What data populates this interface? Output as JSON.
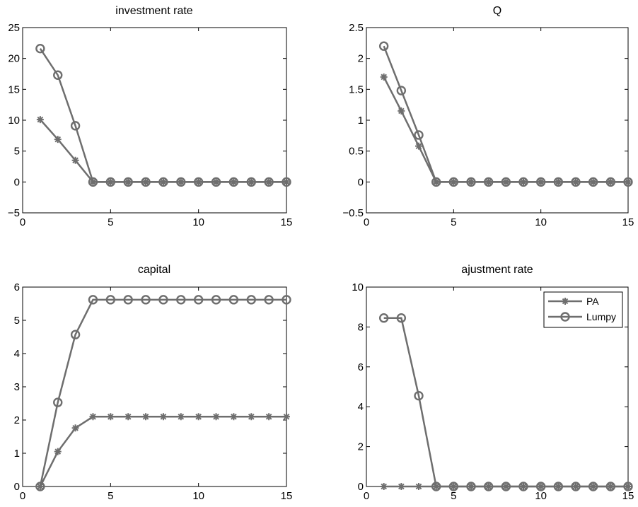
{
  "chart_data": [
    {
      "type": "line",
      "title": "investment rate",
      "xlabel": "",
      "ylabel": "",
      "xlim": [
        0,
        15
      ],
      "ylim": [
        -5,
        25
      ],
      "xticks": [
        0,
        5,
        10,
        15
      ],
      "xtick_labels": [
        "0",
        "5",
        "10",
        "15"
      ],
      "yticks": [
        -5,
        0,
        5,
        10,
        15,
        20,
        25
      ],
      "ytick_labels": [
        "−5",
        "0",
        "5",
        "10",
        "15",
        "20",
        "25"
      ],
      "x": [
        1,
        2,
        3,
        4,
        5,
        6,
        7,
        8,
        9,
        10,
        11,
        12,
        13,
        14,
        15
      ],
      "series": [
        {
          "name": "PA",
          "marker": "star",
          "values": [
            10.1,
            6.9,
            3.5,
            0,
            0,
            0,
            0,
            0,
            0,
            0,
            0,
            0,
            0,
            0,
            0
          ]
        },
        {
          "name": "Lumpy",
          "marker": "circle",
          "values": [
            21.6,
            17.3,
            9.1,
            0,
            0,
            0,
            0,
            0,
            0,
            0,
            0,
            0,
            0,
            0,
            0
          ]
        }
      ],
      "legend": false
    },
    {
      "type": "line",
      "title": "Q",
      "xlabel": "",
      "ylabel": "",
      "xlim": [
        0,
        15
      ],
      "ylim": [
        -0.5,
        2.5
      ],
      "xticks": [
        0,
        5,
        10,
        15
      ],
      "xtick_labels": [
        "0",
        "5",
        "10",
        "15"
      ],
      "yticks": [
        -0.5,
        0,
        0.5,
        1,
        1.5,
        2,
        2.5
      ],
      "ytick_labels": [
        "−0.5",
        "0",
        "0.5",
        "1",
        "1.5",
        "2",
        "2.5"
      ],
      "x": [
        1,
        2,
        3,
        4,
        5,
        6,
        7,
        8,
        9,
        10,
        11,
        12,
        13,
        14,
        15
      ],
      "series": [
        {
          "name": "PA",
          "marker": "star",
          "values": [
            1.7,
            1.15,
            0.58,
            0,
            0,
            0,
            0,
            0,
            0,
            0,
            0,
            0,
            0,
            0,
            0
          ]
        },
        {
          "name": "Lumpy",
          "marker": "circle",
          "values": [
            2.2,
            1.48,
            0.76,
            0,
            0,
            0,
            0,
            0,
            0,
            0,
            0,
            0,
            0,
            0,
            0
          ]
        }
      ],
      "legend": false
    },
    {
      "type": "line",
      "title": "capital",
      "xlabel": "",
      "ylabel": "",
      "xlim": [
        0,
        15
      ],
      "ylim": [
        0,
        6
      ],
      "xticks": [
        0,
        5,
        10,
        15
      ],
      "xtick_labels": [
        "0",
        "5",
        "10",
        "15"
      ],
      "yticks": [
        0,
        1,
        2,
        3,
        4,
        5,
        6
      ],
      "ytick_labels": [
        "0",
        "1",
        "2",
        "3",
        "4",
        "5",
        "6"
      ],
      "x": [
        1,
        2,
        3,
        4,
        5,
        6,
        7,
        8,
        9,
        10,
        11,
        12,
        13,
        14,
        15
      ],
      "series": [
        {
          "name": "PA",
          "marker": "star",
          "values": [
            0,
            1.05,
            1.76,
            2.1,
            2.1,
            2.1,
            2.1,
            2.1,
            2.1,
            2.1,
            2.1,
            2.1,
            2.1,
            2.1,
            2.1
          ]
        },
        {
          "name": "Lumpy",
          "marker": "circle",
          "values": [
            0,
            2.53,
            4.57,
            5.62,
            5.62,
            5.62,
            5.62,
            5.62,
            5.62,
            5.62,
            5.62,
            5.62,
            5.62,
            5.62,
            5.62
          ]
        }
      ],
      "legend": false
    },
    {
      "type": "line",
      "title": "ajustment rate",
      "xlabel": "",
      "ylabel": "",
      "xlim": [
        0,
        15
      ],
      "ylim": [
        0,
        10
      ],
      "xticks": [
        0,
        5,
        10,
        15
      ],
      "xtick_labels": [
        "0",
        "5",
        "10",
        "15"
      ],
      "yticks": [
        0,
        2,
        4,
        6,
        8,
        10
      ],
      "ytick_labels": [
        "0",
        "2",
        "4",
        "6",
        "8",
        "10"
      ],
      "x": [
        1,
        2,
        3,
        4,
        5,
        6,
        7,
        8,
        9,
        10,
        11,
        12,
        13,
        14,
        15
      ],
      "series": [
        {
          "name": "PA",
          "marker": "star",
          "values": [
            0,
            0,
            0,
            0,
            0,
            0,
            0,
            0,
            0,
            0,
            0,
            0,
            0,
            0,
            0
          ]
        },
        {
          "name": "Lumpy",
          "marker": "circle",
          "values": [
            8.45,
            8.45,
            4.55,
            0,
            0,
            0,
            0,
            0,
            0,
            0,
            0,
            0,
            0,
            0,
            0
          ]
        }
      ],
      "legend": true,
      "legend_position": "top-right"
    }
  ],
  "style": {
    "line_color": "#6e6e6e",
    "axes_color": "#000000",
    "background": "#ffffff"
  }
}
